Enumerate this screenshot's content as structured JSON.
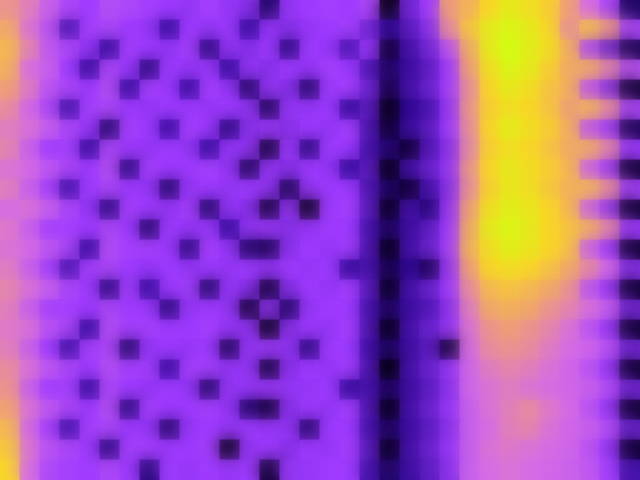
{
  "chart_data": {
    "type": "heatmap",
    "tick_labels": false,
    "grid": false,
    "color_range": [
      0,
      100
    ],
    "cells": [
      [
        72,
        66,
        55,
        45,
        40,
        48,
        45,
        42,
        40,
        38,
        42,
        38,
        35,
        10,
        38,
        40,
        42,
        40,
        45,
        2,
        30,
        40,
        75,
        80,
        90,
        95,
        92,
        88,
        75,
        60,
        45,
        10
      ],
      [
        78,
        62,
        50,
        20,
        42,
        45,
        40,
        38,
        15,
        40,
        38,
        40,
        15,
        38,
        35,
        38,
        40,
        42,
        30,
        15,
        25,
        35,
        70,
        85,
        95,
        98,
        95,
        90,
        70,
        85,
        75,
        45
      ],
      [
        82,
        68,
        52,
        45,
        38,
        15,
        42,
        40,
        38,
        42,
        12,
        38,
        35,
        40,
        12,
        40,
        38,
        20,
        40,
        5,
        20,
        30,
        50,
        78,
        95,
        100,
        96,
        92,
        80,
        45,
        30,
        8
      ],
      [
        80,
        60,
        55,
        40,
        15,
        45,
        40,
        12,
        40,
        38,
        40,
        15,
        38,
        35,
        40,
        38,
        42,
        40,
        22,
        10,
        18,
        25,
        40,
        75,
        92,
        98,
        95,
        88,
        78,
        80,
        70,
        50
      ],
      [
        75,
        65,
        50,
        45,
        40,
        48,
        15,
        42,
        40,
        15,
        42,
        38,
        10,
        38,
        35,
        10,
        40,
        42,
        30,
        8,
        20,
        28,
        42,
        70,
        90,
        95,
        92,
        85,
        80,
        50,
        35,
        5
      ],
      [
        70,
        58,
        45,
        18,
        42,
        45,
        40,
        38,
        40,
        40,
        38,
        40,
        38,
        8,
        38,
        38,
        40,
        15,
        25,
        2,
        15,
        20,
        38,
        72,
        88,
        92,
        90,
        85,
        75,
        82,
        72,
        45
      ],
      [
        65,
        62,
        55,
        45,
        40,
        10,
        42,
        40,
        15,
        42,
        40,
        12,
        35,
        40,
        35,
        40,
        38,
        42,
        22,
        5,
        18,
        25,
        40,
        70,
        90,
        96,
        92,
        88,
        80,
        50,
        40,
        8
      ],
      [
        68,
        55,
        40,
        42,
        15,
        45,
        40,
        38,
        40,
        38,
        15,
        38,
        38,
        5,
        40,
        12,
        40,
        40,
        20,
        12,
        5,
        22,
        35,
        68,
        88,
        92,
        90,
        85,
        78,
        80,
        70,
        40
      ],
      [
        62,
        60,
        52,
        45,
        40,
        48,
        12,
        42,
        40,
        40,
        42,
        38,
        8,
        38,
        35,
        40,
        38,
        15,
        25,
        2,
        20,
        28,
        38,
        72,
        90,
        95,
        92,
        88,
        82,
        55,
        40,
        5
      ],
      [
        66,
        55,
        42,
        18,
        40,
        45,
        40,
        38,
        10,
        38,
        40,
        38,
        40,
        38,
        8,
        38,
        40,
        40,
        22,
        10,
        5,
        20,
        35,
        70,
        88,
        94,
        92,
        86,
        80,
        82,
        72,
        42
      ],
      [
        60,
        62,
        55,
        45,
        38,
        12,
        42,
        40,
        38,
        42,
        10,
        38,
        35,
        5,
        38,
        2,
        40,
        42,
        25,
        3,
        20,
        12,
        38,
        75,
        92,
        96,
        94,
        90,
        82,
        55,
        38,
        5
      ],
      [
        64,
        55,
        42,
        42,
        40,
        45,
        40,
        10,
        40,
        38,
        40,
        15,
        38,
        40,
        35,
        38,
        40,
        40,
        20,
        10,
        18,
        25,
        40,
        78,
        95,
        98,
        95,
        90,
        85,
        80,
        70,
        40
      ],
      [
        62,
        60,
        52,
        45,
        15,
        48,
        42,
        42,
        40,
        12,
        42,
        38,
        10,
        8,
        35,
        40,
        38,
        42,
        22,
        2,
        20,
        28,
        42,
        80,
        92,
        96,
        94,
        90,
        85,
        55,
        40,
        5
      ],
      [
        65,
        55,
        42,
        20,
        42,
        45,
        40,
        38,
        40,
        38,
        40,
        38,
        40,
        38,
        40,
        38,
        40,
        15,
        20,
        8,
        15,
        8,
        38,
        75,
        90,
        92,
        90,
        85,
        78,
        70,
        60,
        35
      ],
      [
        68,
        62,
        55,
        45,
        40,
        12,
        42,
        15,
        40,
        42,
        10,
        38,
        35,
        5,
        35,
        40,
        38,
        42,
        25,
        3,
        20,
        28,
        40,
        70,
        82,
        85,
        82,
        78,
        72,
        50,
        38,
        5
      ],
      [
        66,
        55,
        42,
        42,
        40,
        45,
        40,
        40,
        12,
        38,
        40,
        38,
        5,
        38,
        10,
        38,
        40,
        40,
        20,
        10,
        18,
        22,
        35,
        65,
        78,
        80,
        78,
        72,
        68,
        62,
        55,
        30
      ],
      [
        64,
        62,
        50,
        45,
        15,
        48,
        42,
        42,
        40,
        40,
        42,
        38,
        38,
        2,
        35,
        40,
        38,
        42,
        22,
        2,
        20,
        28,
        38,
        62,
        72,
        75,
        72,
        68,
        62,
        50,
        38,
        5
      ],
      [
        66,
        55,
        40,
        18,
        42,
        45,
        10,
        38,
        40,
        38,
        40,
        8,
        38,
        40,
        38,
        12,
        40,
        40,
        18,
        10,
        18,
        25,
        5,
        60,
        70,
        72,
        70,
        65,
        60,
        58,
        50,
        30
      ],
      [
        70,
        62,
        52,
        45,
        40,
        48,
        42,
        42,
        15,
        42,
        42,
        38,
        38,
        5,
        35,
        40,
        38,
        42,
        22,
        0,
        20,
        28,
        38,
        58,
        65,
        68,
        66,
        62,
        58,
        50,
        38,
        5
      ],
      [
        72,
        55,
        40,
        42,
        15,
        45,
        40,
        38,
        40,
        38,
        10,
        38,
        38,
        40,
        38,
        38,
        40,
        15,
        20,
        10,
        18,
        25,
        35,
        58,
        62,
        65,
        62,
        60,
        58,
        55,
        48,
        30
      ],
      [
        76,
        62,
        52,
        45,
        40,
        48,
        12,
        42,
        40,
        40,
        42,
        38,
        10,
        5,
        35,
        40,
        38,
        42,
        22,
        2,
        20,
        28,
        38,
        55,
        62,
        66,
        70,
        64,
        60,
        50,
        38,
        5
      ],
      [
        82,
        58,
        42,
        18,
        42,
        45,
        40,
        38,
        10,
        38,
        40,
        38,
        40,
        38,
        38,
        10,
        40,
        40,
        20,
        10,
        18,
        25,
        35,
        55,
        60,
        66,
        68,
        62,
        58,
        55,
        48,
        28
      ],
      [
        86,
        62,
        50,
        45,
        40,
        12,
        42,
        42,
        40,
        40,
        42,
        2,
        38,
        40,
        35,
        40,
        38,
        42,
        25,
        3,
        20,
        28,
        38,
        55,
        62,
        64,
        62,
        60,
        58,
        50,
        38,
        5
      ],
      [
        90,
        60,
        45,
        42,
        40,
        45,
        40,
        12,
        40,
        38,
        40,
        38,
        40,
        5,
        38,
        38,
        40,
        40,
        20,
        10,
        18,
        25,
        35,
        55,
        60,
        62,
        60,
        58,
        56,
        52,
        42,
        20
      ]
    ]
  }
}
